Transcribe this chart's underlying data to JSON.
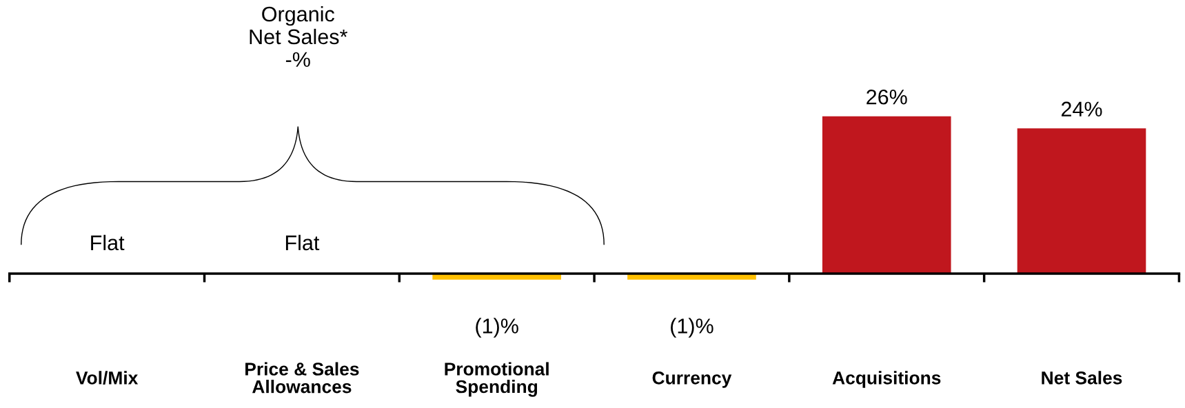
{
  "chart_data": {
    "type": "bar",
    "categories": [
      "Vol/Mix",
      "Price & Sales\nAllowances",
      "Promotional\nSpending",
      "Currency",
      "Acquisitions",
      "Net Sales"
    ],
    "values": [
      0,
      0,
      -1,
      -1,
      26,
      24
    ],
    "colors": [
      "#c0171e",
      "#c0171e",
      "#ffc000",
      "#ffc000",
      "#c0171e",
      "#c0171e"
    ],
    "value_labels": [
      "Flat",
      "Flat",
      "(1)%",
      "(1)%",
      "26%",
      "24%"
    ],
    "annotations": [
      "Organic\nNet Sales*\n-%"
    ],
    "grid": false,
    "legend": false,
    "tick_labels": "x"
  }
}
